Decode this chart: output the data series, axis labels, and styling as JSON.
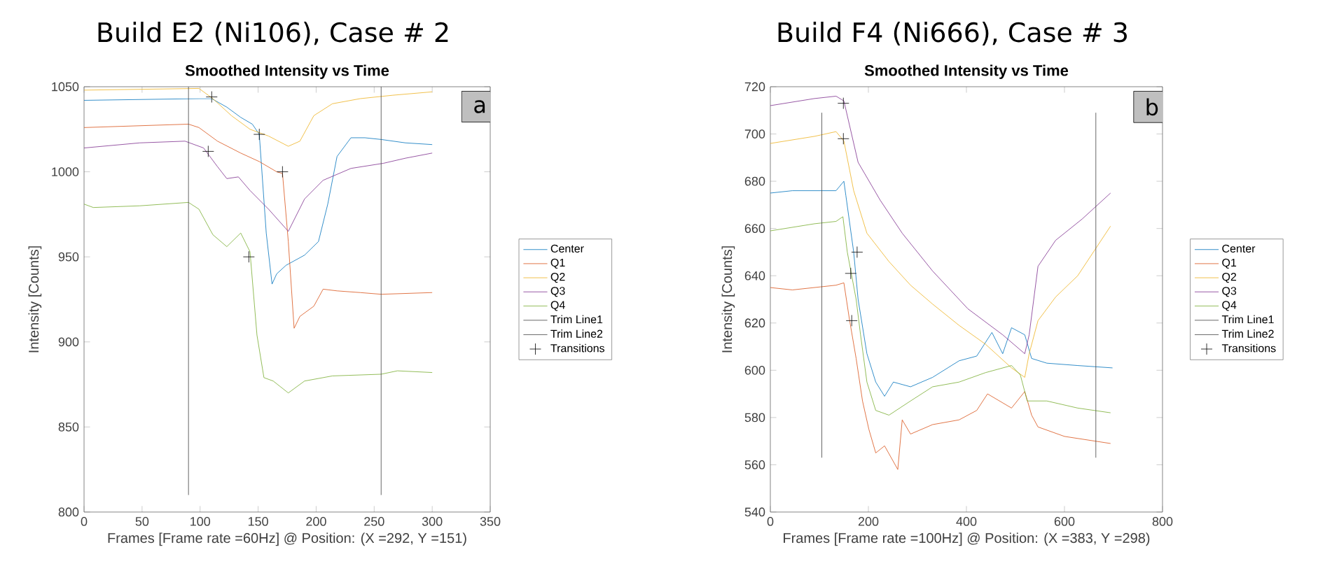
{
  "chart_data": [
    {
      "type": "line",
      "title": "Build E2 (Ni106),    Case # 2",
      "subtitle": "Smoothed Intensity vs Time",
      "xlabel": "Frames [Frame rate =60Hz] @ Position: (X =292, Y =151)",
      "ylabel": "Intensity [Counts]",
      "xlim": [
        0,
        350
      ],
      "ylim": [
        800,
        1050
      ],
      "xticks": [
        0,
        50,
        100,
        150,
        200,
        250,
        300,
        350
      ],
      "yticks": [
        800,
        850,
        900,
        950,
        1000,
        1050
      ],
      "legend": "right",
      "annotations": [
        "a"
      ],
      "series": [
        {
          "name": "Center",
          "color": "#0072bd",
          "x": [
            0,
            99,
            110,
            123,
            135,
            145,
            151,
            157,
            162,
            166,
            174,
            190,
            202,
            210,
            218,
            230,
            242,
            256,
            277,
            300
          ],
          "values": [
            1042,
            1043,
            1043,
            1038,
            1032,
            1028,
            1022,
            964,
            934,
            940,
            945,
            951,
            959,
            981,
            1009,
            1020,
            1020,
            1019,
            1017,
            1016
          ]
        },
        {
          "name": "Q1",
          "color": "#d95319",
          "x": [
            0,
            90,
            99,
            115,
            135,
            151,
            166,
            171,
            176,
            181,
            186,
            198,
            206,
            218,
            238,
            256,
            300
          ],
          "values": [
            1026,
            1028,
            1026,
            1018,
            1011,
            1006,
            1000,
            999,
            959,
            908,
            915,
            921,
            931,
            930,
            929,
            928,
            929
          ]
        },
        {
          "name": "Q2",
          "color": "#edb120",
          "x": [
            0,
            99,
            111,
            127,
            143,
            159,
            176,
            186,
            198,
            214,
            238,
            266,
            300
          ],
          "values": [
            1048,
            1049,
            1043,
            1033,
            1025,
            1021,
            1015,
            1018,
            1033,
            1040,
            1043,
            1045,
            1047
          ]
        },
        {
          "name": "Q3",
          "color": "#7e2f8e",
          "x": [
            0,
            48,
            87,
            103,
            115,
            123,
            133,
            143,
            159,
            176,
            190,
            206,
            230,
            258,
            277,
            300
          ],
          "values": [
            1014,
            1017,
            1018,
            1014,
            1003,
            996,
            997,
            989,
            978,
            965,
            984,
            995,
            1002,
            1005,
            1008,
            1011
          ]
        },
        {
          "name": "Q4",
          "color": "#77ac30",
          "x": [
            0,
            8,
            48,
            90,
            99,
            111,
            123,
            135,
            143,
            149,
            155,
            163,
            176,
            190,
            214,
            256,
            270,
            300
          ],
          "values": [
            981,
            979,
            980,
            982,
            978,
            963,
            956,
            964,
            953,
            904,
            879,
            877,
            870,
            877,
            880,
            881,
            883,
            882
          ]
        },
        {
          "name": "Trim Line1",
          "color": "#404040",
          "x": [
            90,
            90
          ],
          "values": [
            810,
            1050
          ]
        },
        {
          "name": "Trim Line2",
          "color": "#404040",
          "x": [
            256,
            256
          ],
          "values": [
            810,
            1050
          ]
        },
        {
          "name": "Transitions",
          "type": "scatter",
          "marker": "cross",
          "color": "#000000",
          "x": [
            110,
            151,
            107,
            171,
            142
          ],
          "values": [
            1044,
            1022,
            1012,
            1000,
            950
          ]
        }
      ]
    },
    {
      "type": "line",
      "title": "Build F4 (Ni666),    Case # 3",
      "subtitle": "Smoothed Intensity vs Time",
      "xlabel": "Frames [Frame rate =100Hz] @ Position: (X =383, Y =298)",
      "ylabel": "Intensity [Counts]",
      "xlim": [
        0,
        800
      ],
      "ylim": [
        540,
        720
      ],
      "xticks": [
        0,
        200,
        400,
        600,
        800
      ],
      "yticks": [
        540,
        560,
        580,
        600,
        620,
        640,
        660,
        680,
        700,
        720
      ],
      "legend": "right",
      "annotations": [
        "b"
      ],
      "series": [
        {
          "name": "Center",
          "color": "#0072bd",
          "x": [
            0,
            45,
            134,
            150,
            154,
            170,
            179,
            197,
            215,
            233,
            251,
            286,
            331,
            385,
            421,
            452,
            474,
            492,
            519,
            533,
            564,
            627,
            698
          ],
          "values": [
            675,
            676,
            676,
            680,
            674,
            650,
            630,
            607,
            595,
            589,
            595,
            593,
            597,
            604,
            606,
            616,
            607,
            618,
            615,
            605,
            603,
            602,
            601
          ]
        },
        {
          "name": "Q1",
          "color": "#d95319",
          "x": [
            0,
            45,
            134,
            150,
            161,
            175,
            188,
            201,
            215,
            233,
            260,
            269,
            286,
            331,
            385,
            421,
            443,
            492,
            519,
            533,
            546,
            600,
            694
          ],
          "values": [
            635,
            634,
            636,
            637,
            622,
            605,
            587,
            575,
            565,
            568,
            558,
            579,
            573,
            577,
            579,
            583,
            590,
            584,
            591,
            581,
            576,
            572,
            569
          ]
        },
        {
          "name": "Q2",
          "color": "#edb120",
          "x": [
            0,
            90,
            134,
            150,
            170,
            197,
            242,
            286,
            331,
            385,
            439,
            492,
            519,
            528,
            546,
            582,
            627,
            694
          ],
          "values": [
            696,
            699,
            701,
            697,
            676,
            658,
            646,
            636,
            628,
            619,
            611,
            601,
            597,
            607,
            621,
            631,
            640,
            661
          ]
        },
        {
          "name": "Q3",
          "color": "#7e2f8e",
          "x": [
            0,
            90,
            134,
            150,
            179,
            224,
            269,
            331,
            403,
            474,
            519,
            528,
            546,
            582,
            636,
            694
          ],
          "values": [
            712,
            715,
            716,
            714,
            688,
            672,
            658,
            642,
            626,
            615,
            607,
            615,
            644,
            655,
            664,
            675
          ]
        },
        {
          "name": "Q4",
          "color": "#77ac30",
          "x": [
            0,
            90,
            134,
            148,
            157,
            175,
            184,
            197,
            215,
            242,
            286,
            331,
            385,
            439,
            492,
            510,
            524,
            564,
            627,
            694
          ],
          "values": [
            659,
            662,
            663,
            665,
            650,
            630,
            615,
            595,
            583,
            581,
            587,
            593,
            595,
            599,
            602,
            598,
            587,
            587,
            584,
            582
          ]
        },
        {
          "name": "Trim Line1",
          "color": "#404040",
          "x": [
            105,
            105
          ],
          "values": [
            563,
            709
          ]
        },
        {
          "name": "Trim Line2",
          "color": "#404040",
          "x": [
            664,
            664
          ],
          "values": [
            563,
            709
          ]
        },
        {
          "name": "Transitions",
          "type": "scatter",
          "marker": "cross",
          "color": "#000000",
          "x": [
            149,
            149,
            177,
            164,
            166
          ],
          "values": [
            713,
            698,
            650,
            641,
            621
          ]
        }
      ]
    }
  ]
}
